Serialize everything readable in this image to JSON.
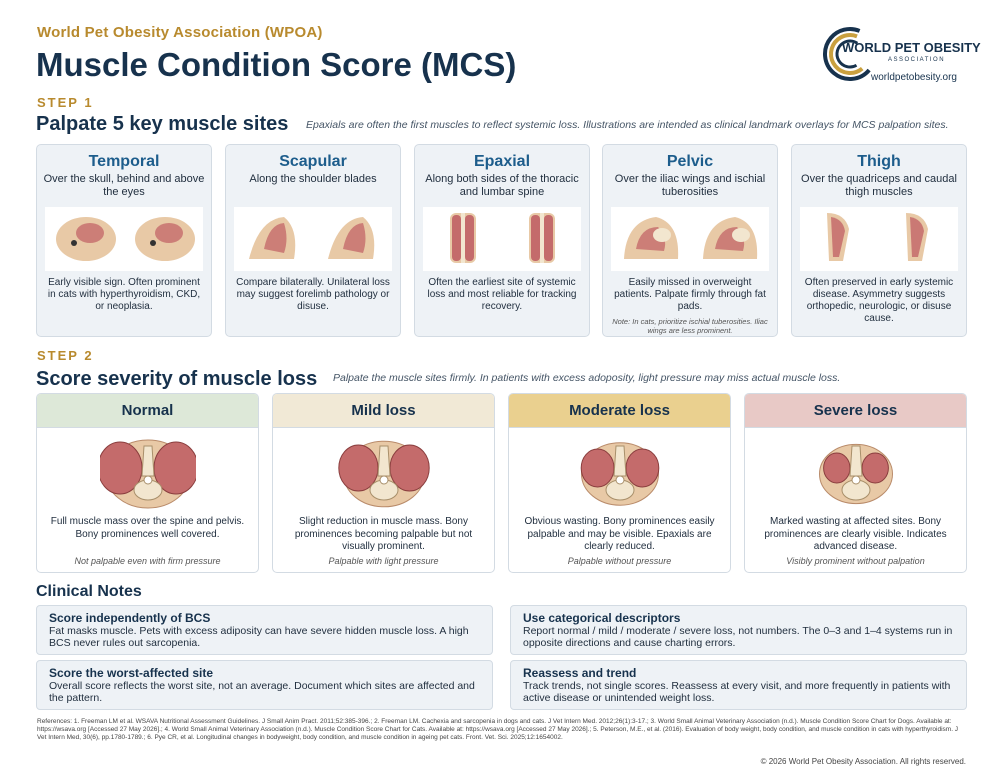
{
  "header": {
    "org": "World Pet Obesity Association (WPOA)",
    "title": "Muscle Condition Score (MCS)",
    "logo_text_bold": "WORLD",
    "logo_text_rest": "PET OBESITY",
    "logo_sub": "ASSOCIATION",
    "logo_url": "worldpetobesity.org"
  },
  "step1": {
    "label": "STEP 1",
    "title": "Palpate 5 key muscle sites",
    "note": "Epaxials are often the first muscles to reflect systemic loss. Illustrations are intended as clinical landmark overlays for MCS palpation sites.",
    "sites": [
      {
        "name": "Temporal",
        "location": "Over the skull, behind and above the eyes",
        "desc": "Early visible sign. Often prominent in cats with hyperthyroidism, CKD, or neoplasia.",
        "note": ""
      },
      {
        "name": "Scapular",
        "location": "Along the shoulder blades",
        "desc": "Compare bilaterally. Unilateral loss may suggest forelimb pathology or disuse.",
        "note": ""
      },
      {
        "name": "Epaxial",
        "location": "Along both sides of the thoracic and lumbar spine",
        "desc": "Often the earliest site of systemic loss and most reliable for tracking recovery.",
        "note": ""
      },
      {
        "name": "Pelvic",
        "location": "Over the iliac wings and ischial tuberosities",
        "desc": "Easily missed in overweight patients. Palpate firmly through fat pads.",
        "note": "Note: In cats, prioritize ischial tuberosities. Iliac wings are less prominent."
      },
      {
        "name": "Thigh",
        "location": "Over the quadriceps and caudal thigh muscles",
        "desc": "Often preserved in early systemic disease. Asymmetry suggests orthopedic, neurologic, or disuse cause.",
        "note": ""
      }
    ]
  },
  "step2": {
    "label": "STEP 2",
    "title": "Score severity of muscle loss",
    "note": "Palpate the muscle sites firmly. In patients with excess adoposity, light pressure may miss actual muscle loss.",
    "levels": [
      {
        "name": "Normal",
        "color": "#dde8d8",
        "fill": 1.0,
        "desc": "Full muscle mass over the spine and pelvis. Bony prominences well covered.",
        "foot": "Not palpable even with firm pressure"
      },
      {
        "name": "Mild loss",
        "color": "#f1e9d6",
        "fill": 0.85,
        "desc": "Slight reduction in muscle mass. Bony prominences becoming palpable but not visually prominent.",
        "foot": "Palpable with light pressure"
      },
      {
        "name": "Moderate loss",
        "color": "#ead08f",
        "fill": 0.65,
        "desc": "Obvious wasting. Bony prominences easily palpable and may be visible. Epaxials are clearly reduced.",
        "foot": "Palpable without pressure"
      },
      {
        "name": "Severe loss",
        "color": "#e8c9c6",
        "fill": 0.45,
        "desc": "Marked wasting at affected sites. Bony prominences are clearly visible. Indicates advanced disease.",
        "foot": "Visibly prominent without palpation"
      }
    ]
  },
  "notes": {
    "title": "Clinical Notes",
    "items": [
      {
        "title": "Score independently of BCS",
        "body": "Fat masks muscle. Pets with excess adiposity can have severe hidden muscle loss. A high BCS never rules out sarcopenia."
      },
      {
        "title": "Use categorical descriptors",
        "body": "Report normal / mild / moderate / severe loss, not numbers. The 0–3 and 1–4 systems run in opposite directions and cause charting errors."
      },
      {
        "title": "Score the worst-affected site",
        "body": "Overall score reflects the worst site, not an average. Document which sites are affected and the pattern."
      },
      {
        "title": "Reassess and trend",
        "body": "Track trends, not single scores. Reassess at every visit, and more frequently in patients with active disease or unintended weight loss."
      }
    ]
  },
  "references": "References: 1. Freeman LM et al. WSAVA Nutritional Assessment Guidelines. J Small Anim Pract. 2011;52:385-396.; 2. Freeman LM. Cachexia and sarcopenia in dogs and cats. J Vet Intern Med. 2012;26(1):3-17.; 3. World Small Animal Veterinary Association (n.d.). Muscle Condition Score Chart for Dogs. Available at: https://wsava.org [Accessed 27 May 2026].; 4. World Small Animal Veterinary Association (n.d.). Muscle Condition Score Chart for Cats. Available at: https://wsava.org [Accessed 27 May 2026].; 5. Peterson, M.E., et al. (2016). Evaluation of body weight, body condition, and muscle condition in cats with hyperthyroidism. J Vet Intern Med, 30(6), pp.1780-1789.; 6. Pye CR, et al. Longitudinal changes in bodyweight, body condition, and muscle condition in ageing pet cats. Front. Vet. Sci. 2025;12:1654002.",
  "copyright": "© 2026 World Pet Obesity Association. All rights reserved."
}
